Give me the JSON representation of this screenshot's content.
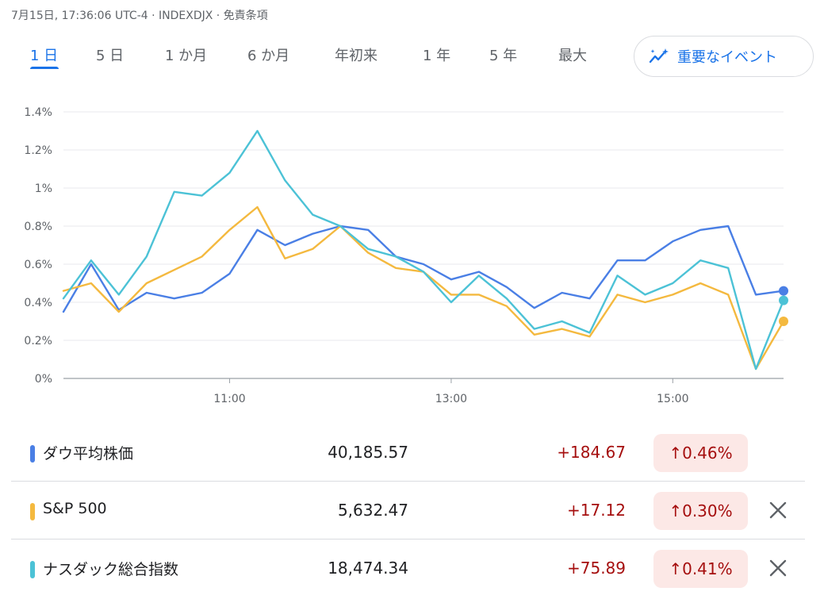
{
  "header": {
    "text": "7月15日, 17:36:06 UTC-4 · INDEXDJX · 免責条項"
  },
  "tabs": [
    {
      "label": "1 日",
      "active": true
    },
    {
      "label": "5 日"
    },
    {
      "label": "1 か月"
    },
    {
      "label": "6 か月"
    },
    {
      "label": "年初来"
    },
    {
      "label": "1 年"
    },
    {
      "label": "5 年"
    },
    {
      "label": "最大"
    }
  ],
  "events_button": {
    "label": "重要なイベント",
    "icon": "sparkle-chart-icon"
  },
  "colors": {
    "dow": "#4a7fe5",
    "sp500": "#f4b93f",
    "nasdaq": "#4cc2d6",
    "up_bg": "#fce8e6",
    "up_text": "#a50e0e",
    "accent": "#1a73e8"
  },
  "chart_data": {
    "type": "line",
    "x_ticks": [
      "11:00",
      "13:00",
      "15:00"
    ],
    "y_ticks": [
      "0%",
      "0.2%",
      "0.4%",
      "0.6%",
      "0.8%",
      "1%",
      "1.2%",
      "1.4%"
    ],
    "ylim": [
      0,
      1.4
    ],
    "grid": true,
    "series": [
      {
        "name": "ダウ平均株価",
        "color": "#4a7fe5",
        "x": [
          "9:30",
          "9:45",
          "10:00",
          "10:15",
          "10:30",
          "10:45",
          "11:00",
          "11:15",
          "11:30",
          "11:45",
          "12:00",
          "12:15",
          "12:30",
          "12:45",
          "13:00",
          "13:15",
          "13:30",
          "13:45",
          "14:00",
          "14:15",
          "14:30",
          "14:45",
          "15:00",
          "15:15",
          "15:30",
          "15:45",
          "16:00"
        ],
        "values": [
          0.35,
          0.6,
          0.36,
          0.45,
          0.42,
          0.45,
          0.55,
          0.78,
          0.7,
          0.76,
          0.8,
          0.78,
          0.64,
          0.6,
          0.52,
          0.56,
          0.48,
          0.37,
          0.45,
          0.42,
          0.62,
          0.62,
          0.72,
          0.78,
          0.8,
          0.44,
          0.46
        ]
      },
      {
        "name": "S&P 500",
        "color": "#f4b93f",
        "x": [
          "9:30",
          "9:45",
          "10:00",
          "10:15",
          "10:30",
          "10:45",
          "11:00",
          "11:15",
          "11:30",
          "11:45",
          "12:00",
          "12:15",
          "12:30",
          "12:45",
          "13:00",
          "13:15",
          "13:30",
          "13:45",
          "14:00",
          "14:15",
          "14:30",
          "14:45",
          "15:00",
          "15:15",
          "15:30",
          "15:45",
          "16:00"
        ],
        "values": [
          0.46,
          0.5,
          0.35,
          0.5,
          0.57,
          0.64,
          0.78,
          0.9,
          0.63,
          0.68,
          0.8,
          0.66,
          0.58,
          0.56,
          0.44,
          0.44,
          0.38,
          0.23,
          0.26,
          0.22,
          0.44,
          0.4,
          0.44,
          0.5,
          0.44,
          0.05,
          0.3
        ]
      },
      {
        "name": "ナスダック総合指数",
        "color": "#4cc2d6",
        "x": [
          "9:30",
          "9:45",
          "10:00",
          "10:15",
          "10:30",
          "10:45",
          "11:00",
          "11:15",
          "11:30",
          "11:45",
          "12:00",
          "12:15",
          "12:30",
          "12:45",
          "13:00",
          "13:15",
          "13:30",
          "13:45",
          "14:00",
          "14:15",
          "14:30",
          "14:45",
          "15:00",
          "15:15",
          "15:30",
          "15:45",
          "16:00"
        ],
        "values": [
          0.42,
          0.62,
          0.44,
          0.64,
          0.98,
          0.96,
          1.08,
          1.3,
          1.04,
          0.86,
          0.8,
          0.68,
          0.64,
          0.56,
          0.4,
          0.54,
          0.42,
          0.26,
          0.3,
          0.24,
          0.54,
          0.44,
          0.5,
          0.62,
          0.58,
          0.05,
          0.41
        ]
      }
    ]
  },
  "quotes": [
    {
      "name": "ダウ平均株価",
      "value": "40,185.57",
      "change": "+184.67",
      "pct": "↑0.46%",
      "color": "#4a7fe5"
    },
    {
      "name": "S&P 500",
      "value": "5,632.47",
      "change": "+17.12",
      "pct": "↑0.30%",
      "color": "#f4b93f",
      "icon": "close-icon"
    },
    {
      "name": "ナスダック総合指数",
      "value": "18,474.34",
      "change": "+75.89",
      "pct": "↑0.41%",
      "color": "#4cc2d6",
      "icon": "close-icon"
    }
  ]
}
